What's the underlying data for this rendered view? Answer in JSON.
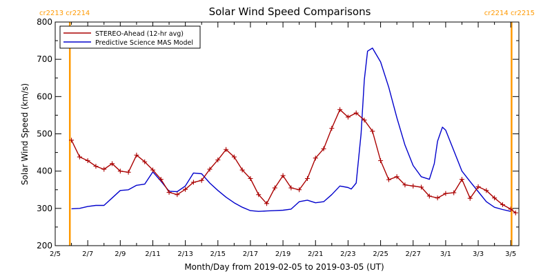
{
  "chart_data": {
    "type": "line",
    "title": "Solar Wind Speed Comparisons",
    "xlabel": "Month/Day from 2019-02-05 to 2019-03-05 (UT)",
    "ylabel": "Solar Wind Speed (km/s)",
    "ylim": [
      200,
      800
    ],
    "yticks": [
      200,
      300,
      400,
      500,
      600,
      700,
      800
    ],
    "x_units": "days since 2019-02-05",
    "xlim": [
      0,
      28.5
    ],
    "xticks": [
      {
        "x": 0,
        "label": "2/5"
      },
      {
        "x": 2,
        "label": "2/7"
      },
      {
        "x": 4,
        "label": "2/9"
      },
      {
        "x": 6,
        "label": "2/11"
      },
      {
        "x": 8,
        "label": "2/13"
      },
      {
        "x": 10,
        "label": "2/15"
      },
      {
        "x": 12,
        "label": "2/17"
      },
      {
        "x": 14,
        "label": "2/19"
      },
      {
        "x": 16,
        "label": "2/21"
      },
      {
        "x": 18,
        "label": "2/23"
      },
      {
        "x": 20,
        "label": "2/25"
      },
      {
        "x": 22,
        "label": "2/27"
      },
      {
        "x": 24,
        "label": "3/1"
      },
      {
        "x": 26,
        "label": "3/3"
      },
      {
        "x": 28,
        "label": "3/5"
      }
    ],
    "carrington_markers": [
      {
        "x": 0.9,
        "color": "#ff9900",
        "label": "cr2213 cr2214",
        "label_side": "left"
      },
      {
        "x": 28.05,
        "color": "#ff9900",
        "label": "cr2214 cr2215",
        "label_side": "right"
      }
    ],
    "legend_position": "top-left",
    "series": [
      {
        "name": "STEREO-Ahead (12-hr avg)",
        "color": "#aa0000",
        "marker": "plus",
        "x": [
          1.0,
          1.5,
          2.0,
          2.5,
          3.0,
          3.5,
          4.0,
          4.5,
          5.0,
          5.5,
          6.0,
          6.5,
          7.0,
          7.5,
          8.0,
          8.5,
          9.0,
          9.5,
          10.0,
          10.5,
          11.0,
          11.5,
          12.0,
          12.5,
          13.0,
          13.5,
          14.0,
          14.5,
          15.0,
          15.5,
          16.0,
          16.5,
          17.0,
          17.5,
          18.0,
          18.5,
          19.0,
          19.5,
          20.0,
          20.5,
          21.0,
          21.5,
          22.0,
          22.5,
          23.0,
          23.5,
          24.0,
          24.5,
          25.0,
          25.5,
          26.0,
          26.5,
          27.0,
          27.5,
          28.0,
          28.3
        ],
        "values": [
          483,
          438,
          428,
          413,
          405,
          420,
          400,
          397,
          443,
          425,
          403,
          378,
          343,
          337,
          351,
          370,
          375,
          405,
          430,
          458,
          438,
          403,
          380,
          337,
          313,
          355,
          388,
          355,
          350,
          380,
          435,
          460,
          515,
          565,
          545,
          556,
          537,
          507,
          428,
          377,
          385,
          363,
          360,
          357,
          333,
          328,
          340,
          342,
          378,
          327,
          358,
          348,
          328,
          310,
          298,
          288
        ]
      },
      {
        "name": "Predictive Science MAS Model",
        "color": "#0000cc",
        "marker": "none",
        "x": [
          1.0,
          1.5,
          2.0,
          2.5,
          3.0,
          3.5,
          4.0,
          4.5,
          5.0,
          5.5,
          6.0,
          6.5,
          7.0,
          7.5,
          8.0,
          8.5,
          9.0,
          9.5,
          10.0,
          10.5,
          11.0,
          11.5,
          12.0,
          12.5,
          13.0,
          13.5,
          14.0,
          14.5,
          15.0,
          15.5,
          16.0,
          16.5,
          17.0,
          17.5,
          18.0,
          18.2,
          18.5,
          18.8,
          19.0,
          19.2,
          19.5,
          20.0,
          20.5,
          21.0,
          21.5,
          22.0,
          22.5,
          23.0,
          23.3,
          23.5,
          23.8,
          24.0,
          24.5,
          25.0,
          25.5,
          26.0,
          26.5,
          27.0,
          27.5,
          28.0
        ],
        "values": [
          299,
          300,
          305,
          308,
          308,
          328,
          348,
          350,
          362,
          365,
          398,
          373,
          346,
          345,
          360,
          395,
          393,
          368,
          348,
          330,
          315,
          303,
          294,
          292,
          293,
          294,
          295,
          298,
          318,
          322,
          315,
          318,
          337,
          360,
          356,
          352,
          368,
          500,
          645,
          722,
          730,
          693,
          625,
          543,
          470,
          415,
          385,
          378,
          420,
          480,
          518,
          510,
          455,
          400,
          372,
          345,
          318,
          303,
          297,
          292
        ]
      }
    ]
  }
}
